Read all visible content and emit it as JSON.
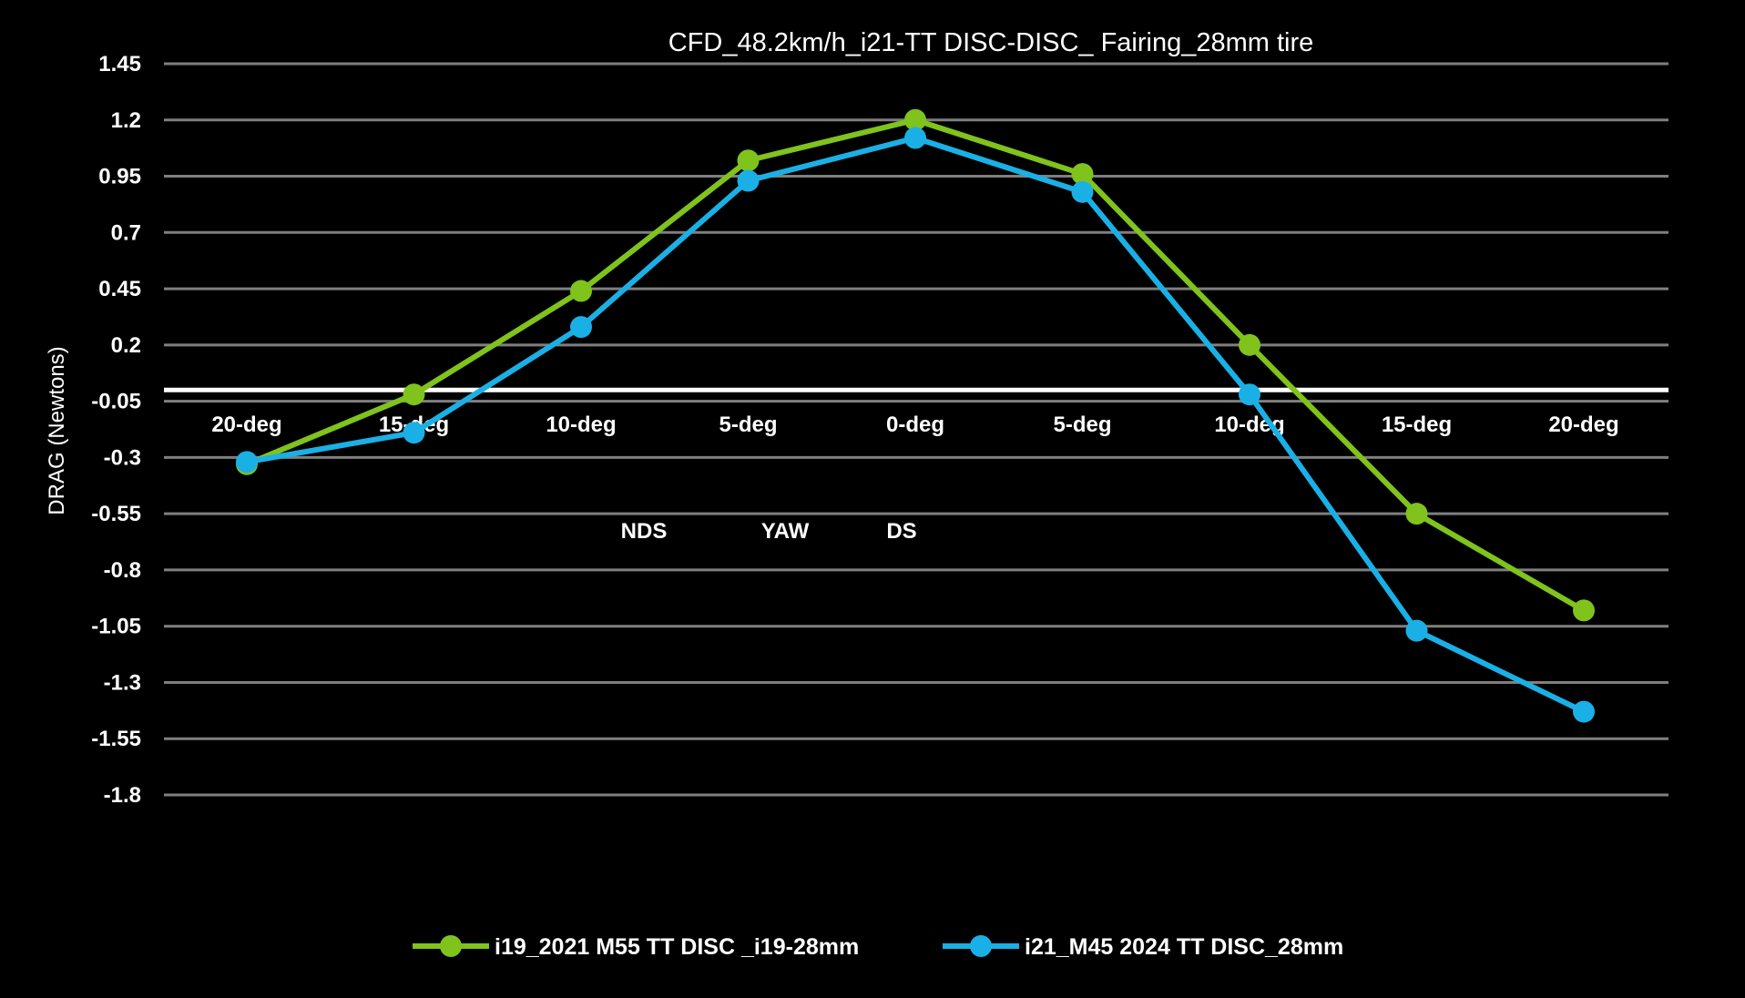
{
  "chart_data": {
    "type": "line",
    "title": "CFD_48.2km/h_i21-TT DISC-DISC_ Fairing_28mm tire",
    "ylabel": "DRAG (Newtons)",
    "xlabel": "",
    "ylim": [
      -1.8,
      1.45
    ],
    "yticks": [
      "1.45",
      "1.2",
      "0.95",
      "0.7",
      "0.45",
      "0.2",
      "-0.05",
      "-0.3",
      "-0.55",
      "-0.8",
      "-1.05",
      "-1.3",
      "-1.55",
      "-1.8"
    ],
    "categories": [
      "20-deg",
      "15-deg",
      "10-deg",
      "5-deg",
      "0-deg",
      "5-deg",
      "10-deg",
      "15-deg",
      "20-deg"
    ],
    "annotations": [
      "NDS",
      "YAW",
      "DS"
    ],
    "grid": true,
    "legend_position": "bottom",
    "series": [
      {
        "name": "i19_2021 M55 TT DISC _i19-28mm",
        "color": "#7fc31c",
        "values": [
          -0.33,
          -0.02,
          0.44,
          1.02,
          1.2,
          0.96,
          0.2,
          -0.55,
          -0.98
        ]
      },
      {
        "name": "i21_M45 2024 TT DISC_28mm",
        "color": "#1ab0e6",
        "values": [
          -0.32,
          -0.19,
          0.28,
          0.93,
          1.12,
          0.88,
          -0.02,
          -1.07,
          -1.43
        ]
      }
    ],
    "zero_line_color": "#ffffff",
    "grid_color": "#7f7f7f"
  }
}
